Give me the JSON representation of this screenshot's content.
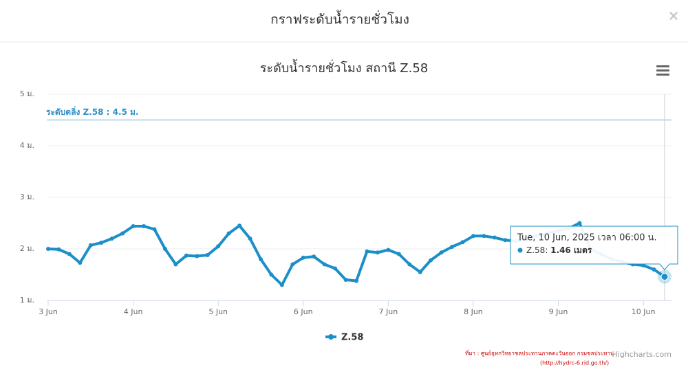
{
  "modal_title": "กราฟระดับน้ำรายชั่วโมง",
  "close_label": "×",
  "source_text": "ที่มา : ศูนย์อุทกวิทยาชลประทานภาคตะวันออก กรมชลประทาน",
  "source_url": "(http://hydrc-6.rid.go.th/)",
  "credits": "Highcharts.com",
  "chart_data": {
    "type": "line",
    "title": "ระดับน้ำรายชั่วโมง สถานี Z.58",
    "x": [
      "2025-06-03 00:00",
      "2025-06-03 03:00",
      "2025-06-03 06:00",
      "2025-06-03 09:00",
      "2025-06-03 12:00",
      "2025-06-03 15:00",
      "2025-06-03 18:00",
      "2025-06-03 21:00",
      "2025-06-04 00:00",
      "2025-06-04 03:00",
      "2025-06-04 06:00",
      "2025-06-04 09:00",
      "2025-06-04 12:00",
      "2025-06-04 15:00",
      "2025-06-04 18:00",
      "2025-06-04 21:00",
      "2025-06-05 00:00",
      "2025-06-05 03:00",
      "2025-06-05 06:00",
      "2025-06-05 09:00",
      "2025-06-05 12:00",
      "2025-06-05 15:00",
      "2025-06-05 18:00",
      "2025-06-05 21:00",
      "2025-06-06 00:00",
      "2025-06-06 03:00",
      "2025-06-06 06:00",
      "2025-06-06 09:00",
      "2025-06-06 12:00",
      "2025-06-06 15:00",
      "2025-06-06 18:00",
      "2025-06-06 21:00",
      "2025-06-07 00:00",
      "2025-06-07 03:00",
      "2025-06-07 06:00",
      "2025-06-07 09:00",
      "2025-06-07 12:00",
      "2025-06-07 15:00",
      "2025-06-07 18:00",
      "2025-06-07 21:00",
      "2025-06-08 00:00",
      "2025-06-08 03:00",
      "2025-06-08 06:00",
      "2025-06-08 09:00",
      "2025-06-08 12:00",
      "2025-06-08 15:00",
      "2025-06-08 18:00",
      "2025-06-08 21:00",
      "2025-06-09 00:00",
      "2025-06-09 03:00",
      "2025-06-09 06:00",
      "2025-06-09 09:00",
      "2025-06-09 12:00",
      "2025-06-09 15:00",
      "2025-06-09 18:00",
      "2025-06-09 21:00",
      "2025-06-10 00:00",
      "2025-06-10 03:00",
      "2025-06-10 06:00"
    ],
    "series": [
      {
        "name": "Z.58",
        "color": "#1b8fc8",
        "values": [
          2.0,
          1.99,
          1.9,
          1.73,
          2.07,
          2.12,
          2.2,
          2.3,
          2.44,
          2.44,
          2.38,
          2.0,
          1.7,
          1.87,
          1.86,
          1.88,
          2.05,
          2.3,
          2.45,
          2.2,
          1.8,
          1.5,
          1.3,
          1.7,
          1.83,
          1.85,
          1.7,
          1.62,
          1.4,
          1.38,
          1.95,
          1.93,
          1.98,
          1.9,
          1.7,
          1.55,
          1.78,
          1.93,
          2.04,
          2.13,
          2.25,
          2.25,
          2.22,
          2.17,
          2.15,
          2.2,
          2.25,
          2.3,
          2.35,
          2.4,
          2.5,
          2.0,
          1.9,
          1.8,
          1.75,
          1.7,
          1.68,
          1.6,
          1.46
        ]
      }
    ],
    "xlim": [
      "2025-06-03 00:00",
      "2025-06-10 06:00"
    ],
    "xticks": [
      {
        "value": "2025-06-03 00:00",
        "label": "3 Jun"
      },
      {
        "value": "2025-06-04 00:00",
        "label": "4 Jun"
      },
      {
        "value": "2025-06-05 00:00",
        "label": "5 Jun"
      },
      {
        "value": "2025-06-06 00:00",
        "label": "6 Jun"
      },
      {
        "value": "2025-06-07 00:00",
        "label": "7 Jun"
      },
      {
        "value": "2025-06-08 00:00",
        "label": "8 Jun"
      },
      {
        "value": "2025-06-09 00:00",
        "label": "9 Jun"
      },
      {
        "value": "2025-06-10 00:00",
        "label": "10 Jun"
      }
    ],
    "ylim": [
      1,
      5
    ],
    "yticks": [
      {
        "value": 1,
        "label": "1 ม."
      },
      {
        "value": 2,
        "label": "2 ม."
      },
      {
        "value": 3,
        "label": "3 ม."
      },
      {
        "value": 4,
        "label": "4 ม."
      },
      {
        "value": 5,
        "label": "5 ม."
      }
    ],
    "grid": true,
    "plot_line": {
      "value": 4.5,
      "label": "ระดับตลิ่ง Z.58 : 4.5 ม.",
      "color": "#9fcbe0"
    },
    "tooltip": {
      "header": "Tue, 10 Jun, 2025 เวลา 06:00 น.",
      "value_label": "1.46 เมตร"
    }
  }
}
